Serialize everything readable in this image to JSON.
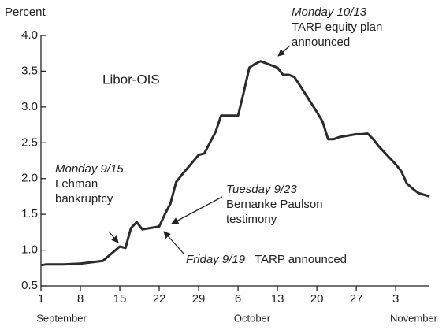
{
  "chart_data": {
    "type": "line",
    "y_label": "Percent",
    "series_label": "Libor-OIS",
    "x": [
      1,
      2,
      3,
      4,
      5,
      8,
      9,
      10,
      11,
      12,
      15,
      16,
      17,
      18,
      19,
      22,
      23,
      24,
      25,
      26,
      29,
      30,
      31,
      32,
      33,
      36,
      37,
      38,
      39,
      40,
      43,
      44,
      45,
      46,
      47,
      50,
      51,
      52,
      53,
      54,
      57,
      58,
      59,
      60,
      61,
      64,
      65,
      66,
      67,
      68,
      70
    ],
    "values": [
      0.79,
      0.8,
      0.8,
      0.8,
      0.8,
      0.81,
      0.82,
      0.83,
      0.84,
      0.85,
      1.05,
      1.03,
      1.31,
      1.39,
      1.29,
      1.33,
      1.5,
      1.65,
      1.95,
      2.05,
      2.33,
      2.35,
      2.5,
      2.65,
      2.88,
      2.88,
      3.2,
      3.55,
      3.6,
      3.64,
      3.55,
      3.45,
      3.45,
      3.42,
      3.3,
      2.93,
      2.8,
      2.55,
      2.55,
      2.58,
      2.62,
      2.62,
      2.63,
      2.55,
      2.45,
      2.2,
      2.1,
      1.93,
      1.86,
      1.8,
      1.75
    ],
    "color": "#2b2b2b",
    "xlim": [
      1,
      70
    ],
    "ylim": [
      0.5,
      4.0
    ],
    "xticks": [
      1,
      8,
      15,
      22,
      29,
      {
        "value": 36,
        "label": "6"
      },
      {
        "value": 43,
        "label": "13"
      },
      {
        "value": 50,
        "label": "20"
      },
      {
        "value": 57,
        "label": "27"
      },
      {
        "value": 64,
        "label": "3"
      }
    ],
    "yticks": [
      0.5,
      {
        "value": 1,
        "label": "1.0"
      },
      1.5,
      {
        "value": 2,
        "label": "2.0"
      },
      2.5,
      {
        "value": 3,
        "label": "3.0"
      },
      3.5,
      {
        "value": 4,
        "label": "4.0"
      }
    ],
    "months": [
      "September",
      "October",
      "November"
    ],
    "annotations": [
      {
        "lines": [
          "Monday 10/13",
          "TARP equity plan",
          "announced"
        ]
      },
      {
        "lines": [
          "Monday 9/15",
          "Lehman",
          "bankruptcy"
        ]
      },
      {
        "lines": [
          "Tuesday 9/23",
          "Bernanke Paulson",
          "testimony"
        ]
      },
      {
        "lines": [
          "Friday 9/19",
          "TARP announced"
        ]
      }
    ]
  }
}
